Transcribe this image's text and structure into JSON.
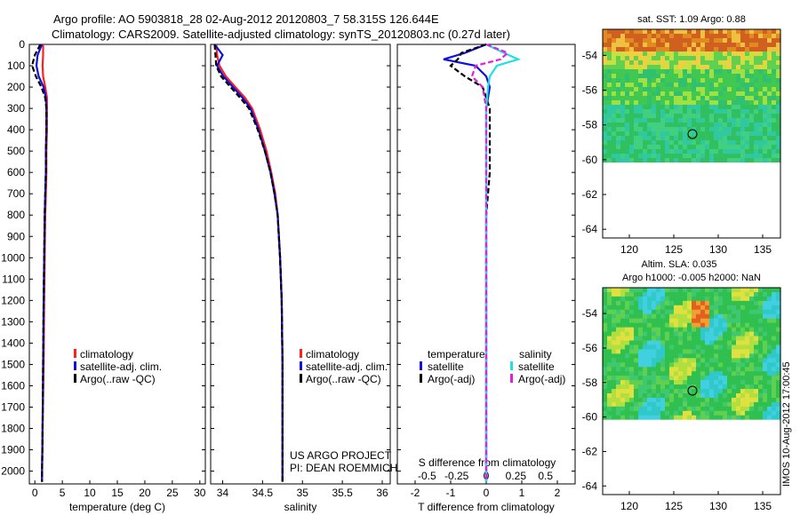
{
  "header": {
    "line1": "Argo profile: AO 5903818_28 02-Aug-2012 20120803_7 58.315S 126.644E",
    "line2": "Climatology: CARS2009. Satellite-adjusted climatology: synTS_20120803.nc (0.27d later)"
  },
  "colors": {
    "climatology": "#ff2020",
    "satellite": "#1010e0",
    "argo": "#000000",
    "satellite_sal": "#20e0e0",
    "argo_sal": "#e020e0"
  },
  "depth_axis": {
    "ticks": [
      0,
      100,
      200,
      300,
      400,
      500,
      600,
      700,
      800,
      900,
      1000,
      1100,
      1200,
      1300,
      1400,
      1500,
      1600,
      1700,
      1800,
      1900,
      2000
    ],
    "range": [
      0,
      2060
    ]
  },
  "panel_temp": {
    "xlabel": "temperature (deg C)",
    "xticks": [
      "0",
      "5",
      "10",
      "15",
      "20",
      "25",
      "30"
    ],
    "legend": [
      "climatology",
      "satellite-adj. clim.",
      "Argo(..raw -QC)"
    ]
  },
  "panel_sal": {
    "xlabel": "salinity",
    "xticks": [
      "34",
      "34.5",
      "35",
      "35.5",
      "36"
    ],
    "legend": [
      "climatology",
      "satellite-adj. clim.",
      "Argo(..raw -QC)"
    ],
    "note1": "US ARGO PROJECT",
    "note2": "PI: DEAN ROEMMICH"
  },
  "panel_diff": {
    "xlabel": "T difference from climatology",
    "top_label": "S difference from climatology",
    "xticks": [
      "-2",
      "-1",
      "0",
      "1",
      "2"
    ],
    "sticks": [
      "-0.5",
      "-0.25",
      "0",
      "0.25",
      "0.5"
    ],
    "legend_temp_title": "temperature",
    "legend_sal_title": "salinity",
    "legend_temp": [
      "satellite",
      "Argo(-adj)"
    ],
    "legend_sal": [
      "satellite",
      "Argo(-adj)"
    ]
  },
  "map_sst": {
    "title": "sat. SST: 1.09 Argo: 0.88",
    "yticks": [
      "-54",
      "-56",
      "-58",
      "-60",
      "-62",
      "-64"
    ],
    "xticks": [
      "120",
      "125",
      "130",
      "135"
    ]
  },
  "map_sla": {
    "title1": "Altim. SLA: 0.035",
    "title2": "Argo h1000: -0.005 h2000: NaN",
    "yticks": [
      "-54",
      "-56",
      "-58",
      "-60",
      "-62",
      "-64"
    ],
    "xticks": [
      "120",
      "125",
      "130",
      "135"
    ]
  },
  "side_label": "IMOS 10-Aug-2012 17:00:45",
  "chart_data": [
    {
      "type": "line",
      "title": "",
      "xlabel": "temperature (deg C)",
      "ylabel": "",
      "xlim": [
        -1,
        31
      ],
      "ylim": [
        2060,
        0
      ],
      "series": [
        {
          "name": "climatology",
          "x": [
            1.5,
            1.5,
            1.4,
            1.5,
            1.9,
            2.2,
            2.2,
            2.2,
            2.1,
            2.1,
            2.0,
            1.9,
            1.8,
            1.7,
            1.6,
            1.4,
            1.3
          ],
          "y": [
            0,
            50,
            100,
            150,
            200,
            250,
            300,
            400,
            500,
            600,
            700,
            800,
            1000,
            1200,
            1500,
            1800,
            2050
          ]
        },
        {
          "name": "satellite-adj. clim.",
          "x": [
            1.3,
            0.5,
            0.3,
            0.7,
            1.6,
            2.0,
            2.1,
            2.1,
            2.0,
            2.0,
            1.9,
            1.8,
            1.7,
            1.6,
            1.5,
            1.4,
            1.3
          ],
          "y": [
            0,
            50,
            100,
            150,
            200,
            250,
            300,
            400,
            500,
            600,
            700,
            800,
            1000,
            1200,
            1500,
            1800,
            2050
          ]
        },
        {
          "name": "Argo(..raw -QC)",
          "x": [
            1.0,
            0.0,
            -0.5,
            0.2,
            1.2,
            1.9,
            2.1,
            2.1,
            2.0,
            2.0,
            1.9,
            1.8,
            1.7,
            1.6,
            1.5,
            1.4,
            1.3
          ],
          "y": [
            0,
            50,
            100,
            150,
            200,
            250,
            300,
            400,
            500,
            600,
            700,
            800,
            1000,
            1200,
            1500,
            1800,
            2050
          ]
        }
      ]
    },
    {
      "type": "line",
      "title": "",
      "xlabel": "salinity",
      "ylabel": "",
      "xlim": [
        33.85,
        36.1
      ],
      "ylim": [
        2060,
        0
      ],
      "series": [
        {
          "name": "climatology",
          "x": [
            33.92,
            33.93,
            33.96,
            34.04,
            34.16,
            34.28,
            34.37,
            34.47,
            34.55,
            34.61,
            34.66,
            34.69,
            34.72,
            34.74,
            34.75,
            34.75,
            34.75
          ],
          "y": [
            0,
            50,
            100,
            150,
            200,
            250,
            300,
            400,
            500,
            600,
            700,
            800,
            1000,
            1200,
            1500,
            1800,
            2050
          ]
        },
        {
          "name": "satellite-adj. clim.",
          "x": [
            33.9,
            34.0,
            33.93,
            34.01,
            34.13,
            34.25,
            34.35,
            34.45,
            34.53,
            34.6,
            34.65,
            34.69,
            34.72,
            34.74,
            34.75,
            34.75,
            34.75
          ],
          "y": [
            0,
            50,
            100,
            150,
            200,
            250,
            300,
            400,
            500,
            600,
            700,
            800,
            1000,
            1200,
            1500,
            1800,
            2050
          ]
        },
        {
          "name": "Argo(..raw -QC)",
          "x": [
            33.9,
            33.91,
            33.92,
            33.98,
            34.1,
            34.22,
            34.33,
            34.44,
            34.53,
            34.6,
            34.65,
            34.69,
            34.72,
            34.74,
            34.75,
            34.75,
            34.75
          ],
          "y": [
            0,
            50,
            100,
            150,
            200,
            250,
            300,
            400,
            500,
            600,
            700,
            800,
            1000,
            1200,
            1500,
            1800,
            2050
          ]
        }
      ]
    },
    {
      "type": "line",
      "title": "",
      "xlabel": "T difference from climatology",
      "ylabel": "",
      "xlim": [
        -2.5,
        2.5
      ],
      "ylim": [
        2060,
        0
      ],
      "series": [
        {
          "name": "temperature satellite",
          "x": [
            0,
            -0.6,
            -1.2,
            -0.3,
            0.0,
            0.1,
            0.0,
            0.0,
            0.0,
            0.0,
            0.0,
            0.0,
            0.0,
            0.0,
            0.0
          ],
          "y": [
            0,
            40,
            70,
            100,
            150,
            200,
            300,
            400,
            600,
            800,
            1000,
            1200,
            1500,
            1800,
            2050
          ]
        },
        {
          "name": "temperature Argo(-adj)",
          "x": [
            0,
            -0.7,
            -0.8,
            -1.0,
            -0.6,
            -0.1,
            0.1,
            0.1,
            0.1,
            0.0,
            0.0,
            0.0,
            0.0,
            0.0,
            0.0
          ],
          "y": [
            0,
            40,
            70,
            100,
            150,
            200,
            300,
            400,
            600,
            800,
            1000,
            1200,
            1500,
            1800,
            2050
          ]
        },
        {
          "name": "salinity satellite",
          "x": [
            0,
            0.5,
            0.9,
            0.3,
            0.1,
            0.05,
            0.0,
            0.0,
            0.0,
            0.0,
            0.0,
            0.0,
            0.0,
            0.0,
            0.0
          ],
          "y": [
            0,
            40,
            70,
            100,
            150,
            200,
            300,
            400,
            600,
            800,
            1000,
            1200,
            1500,
            1800,
            2050
          ]
        },
        {
          "name": "salinity Argo(-adj)",
          "x": [
            0,
            0.6,
            0.4,
            -0.3,
            -0.4,
            -0.1,
            0.0,
            0.0,
            0.0,
            0.0,
            0.0,
            0.0,
            0.0,
            0.0,
            0.0
          ],
          "y": [
            0,
            40,
            70,
            100,
            150,
            200,
            300,
            400,
            600,
            800,
            1000,
            1200,
            1500,
            1800,
            2050
          ]
        }
      ]
    }
  ]
}
